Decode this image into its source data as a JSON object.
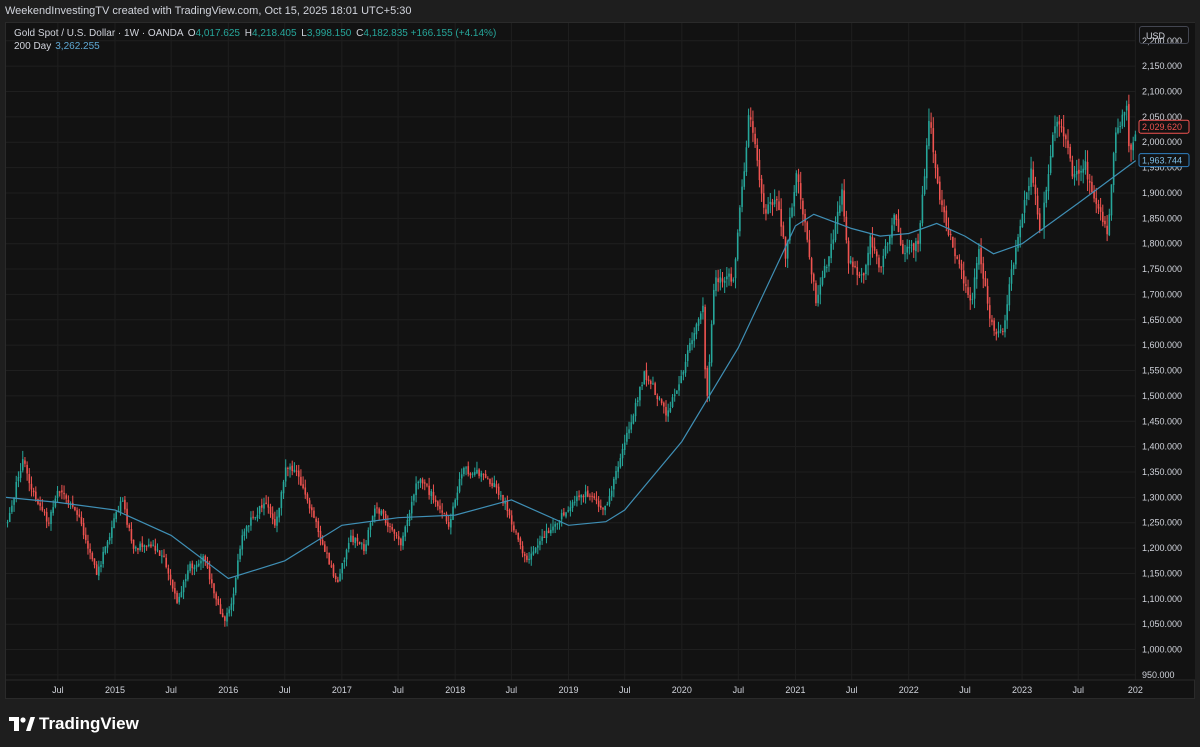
{
  "header": {
    "credit": "WeekendInvestingTV created with TradingView.com, Oct 15, 2025 18:01 UTC+5:30"
  },
  "legend": {
    "symbol": "Gold Spot / U.S. Dollar · 1W · OANDA",
    "open_label": "O",
    "open": "4,017.625",
    "high_label": "H",
    "high": "4,218.405",
    "low_label": "L",
    "low": "3,998.150",
    "close_label": "C",
    "close": "4,182.835",
    "change": "+166.155 (+4.14%)",
    "ma_name": "200 Day",
    "ma_value": "3,262.255"
  },
  "price_scale": {
    "currency": "USD",
    "last_price_label": "2,029.620",
    "ma_price_label": "1,963.744"
  },
  "footer": {
    "brand": "TradingView"
  },
  "colors": {
    "up": "#26a69a",
    "down": "#ef5350",
    "ma": "#3f8fb5",
    "background": "#121212",
    "grid": "#1f1f1f",
    "last_price_badge": "#ef5350",
    "ma_badge": "#2f7fc0"
  },
  "chart_data": {
    "type": "candlestick",
    "timeframe": "1W",
    "y_scale": "linear",
    "ylim": [
      940,
      2235
    ],
    "grid": true,
    "y_ticks": [
      950,
      1000,
      1050,
      1100,
      1150,
      1200,
      1250,
      1300,
      1350,
      1400,
      1450,
      1500,
      1550,
      1600,
      1650,
      1700,
      1750,
      1800,
      1850,
      1900,
      1950,
      2000,
      2050,
      2100,
      2150,
      2200
    ],
    "y_tick_labels": [
      "950.000",
      "1,000.000",
      "1,050.000",
      "1,100.000",
      "1,150.000",
      "1,200.000",
      "1,250.000",
      "1,300.000",
      "1,350.000",
      "1,400.000",
      "1,450.000",
      "1,500.000",
      "1,550.000",
      "1,600.000",
      "1,650.000",
      "1,700.000",
      "1,750.000",
      "1,800.000",
      "1,850.000",
      "1,900.000",
      "1,950.000",
      "2,000.000",
      "2,050.000",
      "2,100.000",
      "2,150.000",
      "2,200.000"
    ],
    "x_range": [
      "2014-01-15",
      "2024-01-03"
    ],
    "x_ticks": [
      {
        "date": "2014-07-01",
        "label": "Jul"
      },
      {
        "date": "2015-01-01",
        "label": "2015"
      },
      {
        "date": "2015-07-01",
        "label": "Jul"
      },
      {
        "date": "2016-01-01",
        "label": "2016"
      },
      {
        "date": "2016-07-01",
        "label": "Jul"
      },
      {
        "date": "2017-01-01",
        "label": "2017"
      },
      {
        "date": "2017-07-01",
        "label": "Jul"
      },
      {
        "date": "2018-01-01",
        "label": "2018"
      },
      {
        "date": "2018-07-01",
        "label": "Jul"
      },
      {
        "date": "2019-01-01",
        "label": "2019"
      },
      {
        "date": "2019-07-01",
        "label": "Jul"
      },
      {
        "date": "2020-01-01",
        "label": "2020"
      },
      {
        "date": "2020-07-01",
        "label": "Jul"
      },
      {
        "date": "2021-01-01",
        "label": "2021"
      },
      {
        "date": "2021-07-01",
        "label": "Jul"
      },
      {
        "date": "2022-01-01",
        "label": "2022"
      },
      {
        "date": "2022-07-01",
        "label": "Jul"
      },
      {
        "date": "2023-01-01",
        "label": "2023"
      },
      {
        "date": "2023-07-01",
        "label": "Jul"
      },
      {
        "date": "2024-01-01",
        "label": "202"
      }
    ],
    "close_path": [
      [
        "2014-01-20",
        1250
      ],
      [
        "2014-03-10",
        1378
      ],
      [
        "2014-04-20",
        1295
      ],
      [
        "2014-06-01",
        1250
      ],
      [
        "2014-06-28",
        1318
      ],
      [
        "2014-09-01",
        1270
      ],
      [
        "2014-10-01",
        1215
      ],
      [
        "2014-11-05",
        1150
      ],
      [
        "2015-01-22",
        1300
      ],
      [
        "2015-03-01",
        1200
      ],
      [
        "2015-05-01",
        1205
      ],
      [
        "2015-06-10",
        1175
      ],
      [
        "2015-07-20",
        1095
      ],
      [
        "2015-08-25",
        1160
      ],
      [
        "2015-10-15",
        1180
      ],
      [
        "2015-12-17",
        1052
      ],
      [
        "2016-01-15",
        1095
      ],
      [
        "2016-02-15",
        1230
      ],
      [
        "2016-05-01",
        1295
      ],
      [
        "2016-06-01",
        1245
      ],
      [
        "2016-07-06",
        1365
      ],
      [
        "2016-08-15",
        1340
      ],
      [
        "2016-10-01",
        1260
      ],
      [
        "2016-12-15",
        1130
      ],
      [
        "2017-01-30",
        1220
      ],
      [
        "2017-03-15",
        1200
      ],
      [
        "2017-04-20",
        1285
      ],
      [
        "2017-07-10",
        1210
      ],
      [
        "2017-09-08",
        1345
      ],
      [
        "2017-12-12",
        1245
      ],
      [
        "2018-01-25",
        1355
      ],
      [
        "2018-04-15",
        1340
      ],
      [
        "2018-06-01",
        1300
      ],
      [
        "2018-08-16",
        1175
      ],
      [
        "2018-10-15",
        1225
      ],
      [
        "2019-01-15",
        1290
      ],
      [
        "2019-03-01",
        1310
      ],
      [
        "2019-05-01",
        1275
      ],
      [
        "2019-06-25",
        1400
      ],
      [
        "2019-09-04",
        1545
      ],
      [
        "2019-11-15",
        1465
      ],
      [
        "2020-01-08",
        1560
      ],
      [
        "2020-03-09",
        1680
      ],
      [
        "2020-03-20",
        1480
      ],
      [
        "2020-04-15",
        1730
      ],
      [
        "2020-06-15",
        1735
      ],
      [
        "2020-08-06",
        2060
      ],
      [
        "2020-09-25",
        1860
      ],
      [
        "2020-11-01",
        1900
      ],
      [
        "2020-11-30",
        1775
      ],
      [
        "2021-01-05",
        1950
      ],
      [
        "2021-03-08",
        1685
      ],
      [
        "2021-04-20",
        1780
      ],
      [
        "2021-06-01",
        1900
      ],
      [
        "2021-06-20",
        1770
      ],
      [
        "2021-08-10",
        1730
      ],
      [
        "2021-09-01",
        1815
      ],
      [
        "2021-09-30",
        1740
      ],
      [
        "2021-11-16",
        1860
      ],
      [
        "2021-12-15",
        1780
      ],
      [
        "2022-02-01",
        1800
      ],
      [
        "2022-03-08",
        2050
      ],
      [
        "2022-04-01",
        1920
      ],
      [
        "2022-05-15",
        1810
      ],
      [
        "2022-07-20",
        1680
      ],
      [
        "2022-08-15",
        1780
      ],
      [
        "2022-09-28",
        1630
      ],
      [
        "2022-11-01",
        1630
      ],
      [
        "2022-12-15",
        1810
      ],
      [
        "2023-02-01",
        1950
      ],
      [
        "2023-02-28",
        1810
      ],
      [
        "2023-04-13",
        2030
      ],
      [
        "2023-05-04",
        2050
      ],
      [
        "2023-06-15",
        1930
      ],
      [
        "2023-07-20",
        1960
      ],
      [
        "2023-08-21",
        1890
      ],
      [
        "2023-10-05",
        1820
      ],
      [
        "2023-10-25",
        2005
      ],
      [
        "2023-12-04",
        2070
      ],
      [
        "2023-12-12",
        1980
      ],
      [
        "2024-01-02",
        2029.62
      ]
    ],
    "ma_path": [
      [
        "2014-01-15",
        1300
      ],
      [
        "2014-07-01",
        1290
      ],
      [
        "2015-01-01",
        1275
      ],
      [
        "2015-07-01",
        1225
      ],
      [
        "2016-01-01",
        1140
      ],
      [
        "2016-07-01",
        1175
      ],
      [
        "2017-01-01",
        1245
      ],
      [
        "2017-07-01",
        1260
      ],
      [
        "2018-01-01",
        1265
      ],
      [
        "2018-07-01",
        1295
      ],
      [
        "2019-01-01",
        1245
      ],
      [
        "2019-05-01",
        1252
      ],
      [
        "2019-07-01",
        1275
      ],
      [
        "2020-01-01",
        1410
      ],
      [
        "2020-07-01",
        1595
      ],
      [
        "2021-01-01",
        1835
      ],
      [
        "2021-03-01",
        1858
      ],
      [
        "2021-07-01",
        1830
      ],
      [
        "2021-10-01",
        1815
      ],
      [
        "2022-01-01",
        1820
      ],
      [
        "2022-04-01",
        1840
      ],
      [
        "2022-07-01",
        1815
      ],
      [
        "2022-10-01",
        1780
      ],
      [
        "2023-01-01",
        1800
      ],
      [
        "2023-07-01",
        1880
      ],
      [
        "2024-01-02",
        1963.744
      ]
    ],
    "last_price": 2029.62,
    "ma_last": 1963.744
  }
}
